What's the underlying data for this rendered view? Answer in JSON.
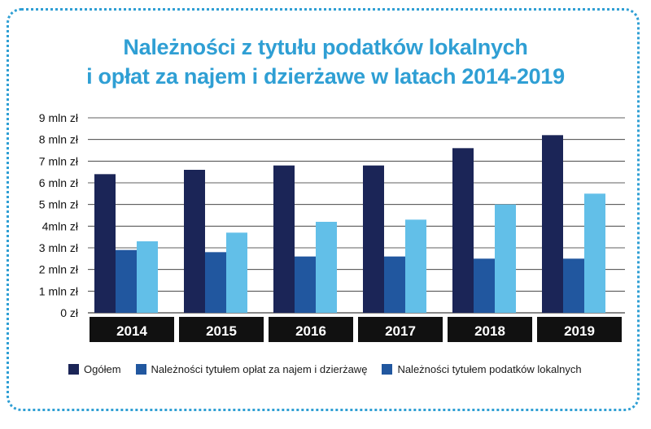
{
  "title": {
    "line1": "Należności z tytułu podatków lokalnych",
    "line2": "i opłat za najem i dzierżawe w latach 2014-2019"
  },
  "colors": {
    "frame": "#2f9fd4",
    "title": "#2f9fd4",
    "series": [
      "#1b2557",
      "#21579f",
      "#62bfe8"
    ],
    "category_band": "#111111",
    "grid": "#2b2b2b"
  },
  "legend": [
    {
      "label": "Ogółem",
      "color": "#1b2557"
    },
    {
      "label": "Należności tytułem opłat za najem i dzierżawę",
      "color": "#21579f"
    },
    {
      "label": "Należności tytułem podatków lokalnych",
      "color": "#21579f"
    }
  ],
  "chart_data": {
    "type": "bar",
    "categories": [
      "2014",
      "2015",
      "2016",
      "2017",
      "2018",
      "2019"
    ],
    "series": [
      {
        "name": "Ogółem",
        "values": [
          6.4,
          6.6,
          6.8,
          6.8,
          7.6,
          8.2
        ]
      },
      {
        "name": "Należności tytułem opłat za najem i dzierżawę",
        "values": [
          2.9,
          2.8,
          2.6,
          2.6,
          2.5,
          2.5
        ]
      },
      {
        "name": "Należności tytułem podatków lokalnych",
        "values": [
          3.3,
          3.7,
          4.2,
          4.3,
          5.0,
          5.5
        ]
      }
    ],
    "ytick_labels": [
      "0 zł",
      "1 mln zł",
      "2 mln zł",
      "3 mln zł",
      "4mln zł",
      "5 mln zł",
      "6 mln zł",
      "7 mln zł",
      "8 mln zł",
      "9 mln zł"
    ],
    "ylim": [
      0,
      9
    ],
    "grid": true,
    "legend_position": "bottom"
  }
}
